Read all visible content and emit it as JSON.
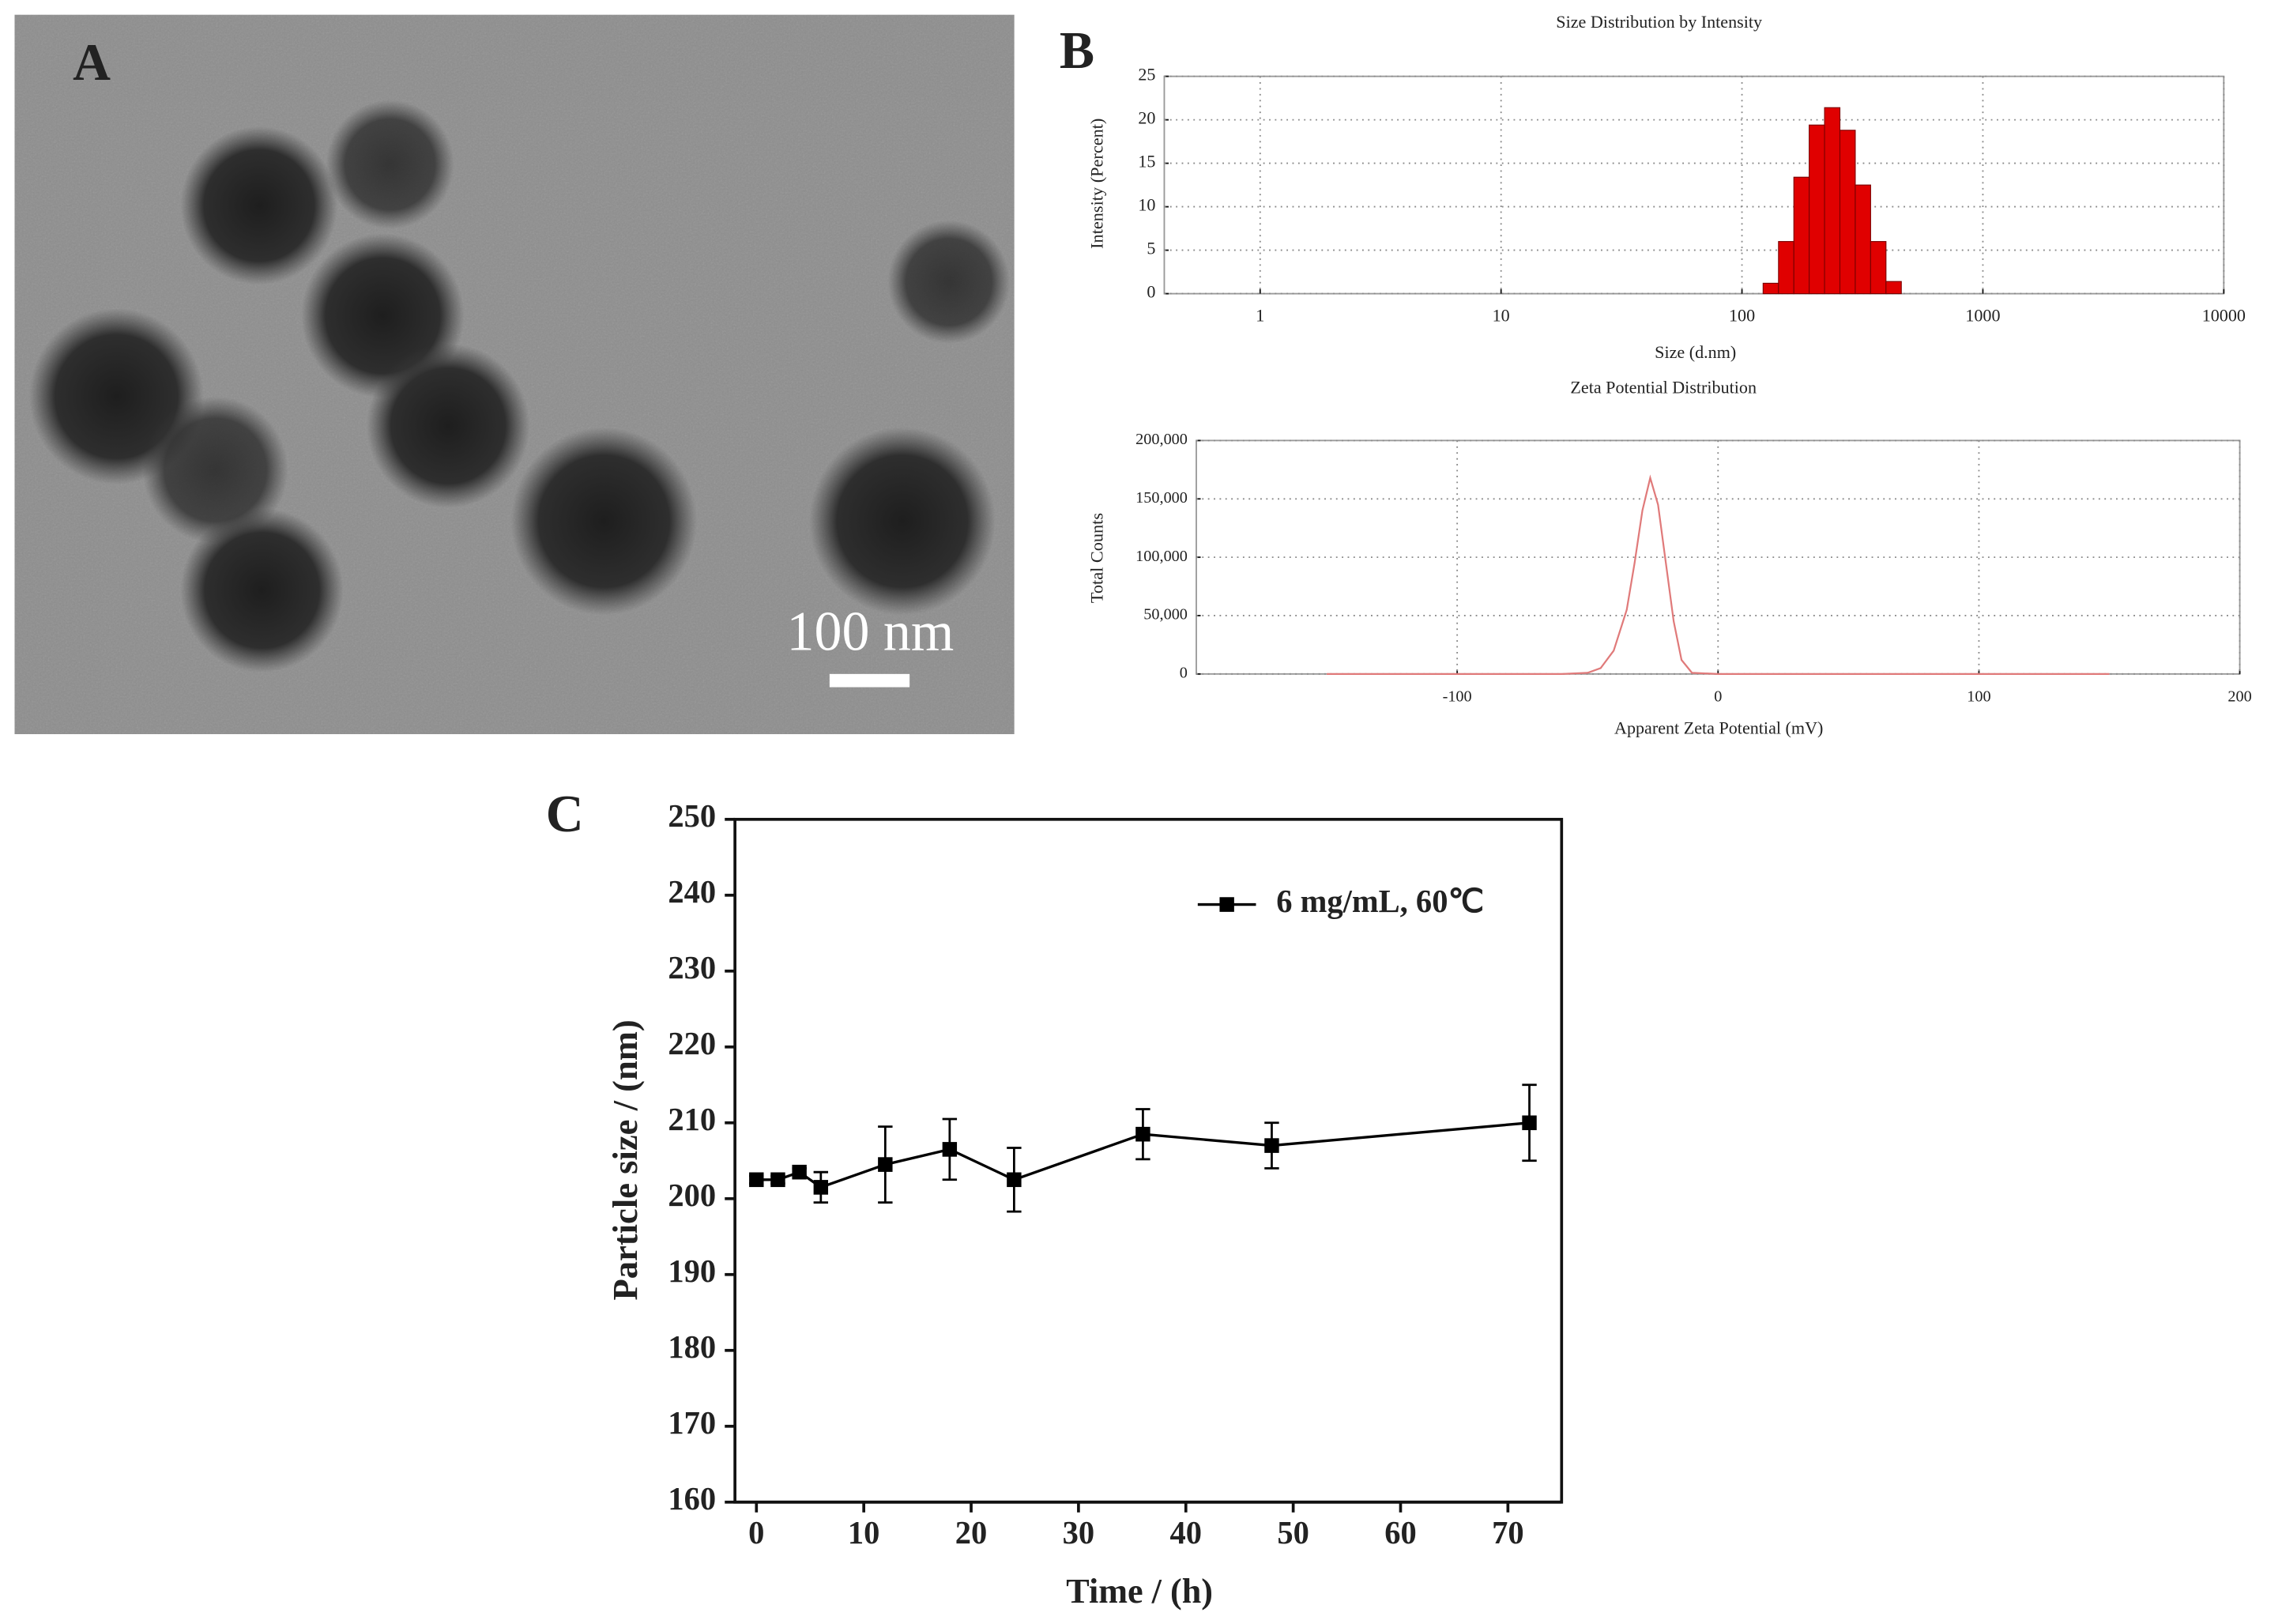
{
  "panel_labels": [
    "A",
    "B",
    "C"
  ],
  "micrograph": {
    "scale_bar": "100 nm"
  },
  "chart_data": [
    {
      "type": "histogram",
      "title": "Size Distribution by Intensity",
      "x_label": "Size (d.nm)",
      "y_label": "Intensity (Percent)",
      "xscale": "log",
      "xlim": [
        0.4,
        10000
      ],
      "xticks": [
        1,
        10,
        100,
        1000,
        10000
      ],
      "ylim": [
        0,
        25
      ],
      "yticks": [
        0,
        5,
        10,
        15,
        20,
        25
      ],
      "grid": true,
      "color": "#e00000",
      "bins": [
        122.4,
        141.8,
        164.2,
        190.1,
        220.2,
        255,
        295.3,
        342,
        396.1,
        458.7
      ],
      "values": [
        1.2,
        6,
        13.4,
        19.4,
        21.4,
        18.8,
        12.5,
        6,
        1.4
      ]
    },
    {
      "type": "line",
      "title": "Zeta Potential Distribution",
      "x_label": "Apparent Zeta Potential (mV)",
      "y_label": "Total Counts",
      "xlim": [
        -200,
        200
      ],
      "xticks": [
        -100,
        0,
        100,
        200
      ],
      "ylim": [
        0,
        200000
      ],
      "yticks": [
        0,
        {
          "value": 50000,
          "label": "50,000"
        },
        {
          "value": 100000,
          "label": "100,000"
        },
        {
          "value": 150000,
          "label": "150,000"
        },
        {
          "value": 200000,
          "label": "200,000"
        }
      ],
      "grid": true,
      "color": "#e07a7a",
      "x": [
        -150,
        -60,
        -50,
        -45,
        -40,
        -35,
        -32,
        -29,
        -26,
        -23,
        -20,
        -17,
        -14,
        -10,
        0,
        150
      ],
      "values": [
        0,
        0,
        1000,
        5000,
        20000,
        55000,
        95000,
        140000,
        168000,
        145000,
        95000,
        45000,
        12000,
        1000,
        0,
        0
      ]
    },
    {
      "type": "errorline",
      "x_label": "Time / (h)",
      "y_label": "Particle size / (nm)",
      "xlim": [
        -2,
        75
      ],
      "xticks": [
        0,
        10,
        20,
        30,
        40,
        50,
        60,
        70
      ],
      "ylim": [
        160,
        250
      ],
      "yticks": [
        160,
        170,
        180,
        190,
        200,
        210,
        220,
        230,
        240,
        250
      ],
      "grid": false,
      "legend": "upper right",
      "x": [
        0,
        2,
        4,
        6,
        12,
        18,
        24,
        36,
        48,
        72
      ],
      "series": [
        {
          "name": "6 mg/mL, 60℃",
          "color": "#000000",
          "marker": "square",
          "values": [
            202.5,
            202.5,
            203.5,
            201.5,
            204.5,
            206.5,
            202.5,
            208.5,
            207,
            210
          ],
          "errors": [
            0.5,
            0.5,
            0.5,
            2,
            5,
            4,
            4.2,
            3.3,
            3,
            5
          ]
        }
      ]
    }
  ]
}
